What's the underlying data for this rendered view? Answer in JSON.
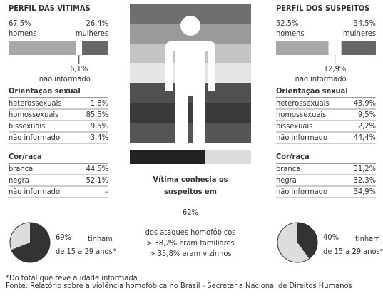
{
  "victims": {
    "title": "PERFIL DAS VÍTIMAS",
    "gender": {
      "men": {
        "value": 67.5,
        "label": "67,5%",
        "name": "homens"
      },
      "women": {
        "value": 26.4,
        "label": "26,4%",
        "name": "mulheres"
      },
      "unknown": {
        "value": 6.1,
        "label": "6,1%",
        "name": "não informado"
      }
    },
    "orientation": {
      "title": "Orientação sexual",
      "rows": [
        [
          "heterossexuais",
          "1,6%"
        ],
        [
          "homossexuais",
          "85,5%"
        ],
        [
          "bissexuais",
          "9,5%"
        ],
        [
          "não informado",
          "3,4%"
        ]
      ]
    },
    "race": {
      "title": "Cor/raça",
      "rows": [
        [
          "branca",
          "44,5%"
        ],
        [
          "negra",
          "52,1%"
        ],
        [
          "não informado",
          "–"
        ]
      ]
    },
    "age": {
      "value": 69,
      "label": "69%",
      "text": "tinham",
      "text2": "de 15 a 29 anos*"
    }
  },
  "suspects": {
    "title": "PERFIL DOS SUSPEITOS",
    "gender": {
      "men": {
        "value": 52.5,
        "label": "52,5%",
        "name": "homens"
      },
      "women": {
        "value": 34.5,
        "label": "34,5%",
        "name": "mulheres"
      },
      "unknown": {
        "value": 12.9,
        "label": "12,9%",
        "name": "não informado"
      }
    },
    "orientation": {
      "title": "Orientação sexual",
      "rows": [
        [
          "heterossexuais",
          "43,9%"
        ],
        [
          "homossexuais",
          "9,5%"
        ],
        [
          "bissexuais",
          "2,2%"
        ],
        [
          "não informado",
          "44,4%"
        ]
      ]
    },
    "race": {
      "title": "Cor/raça",
      "rows": [
        [
          "branca",
          "31,2%"
        ],
        [
          "negra",
          "32,3%"
        ],
        [
          "não informado",
          "34,9%"
        ]
      ]
    },
    "age": {
      "value": 40,
      "label": "40%",
      "text": "tinham",
      "text2": "de 15 a 29 anos*"
    }
  },
  "center": {
    "line1": "Vítima conhecia os",
    "line2": "suspeitos em",
    "value": 62,
    "label": "62%",
    "line3": "dos ataques homofóbicos",
    "items": [
      "> 38,2% eram familiares",
      "> 35,8% eram vizinhos"
    ]
  },
  "footer": [
    "*Do total que teve a idade informada",
    "Fonte: Relatório sobre a violência homofóbica no Brasil - Secretaria Nacional de Direitos Humanos"
  ]
}
